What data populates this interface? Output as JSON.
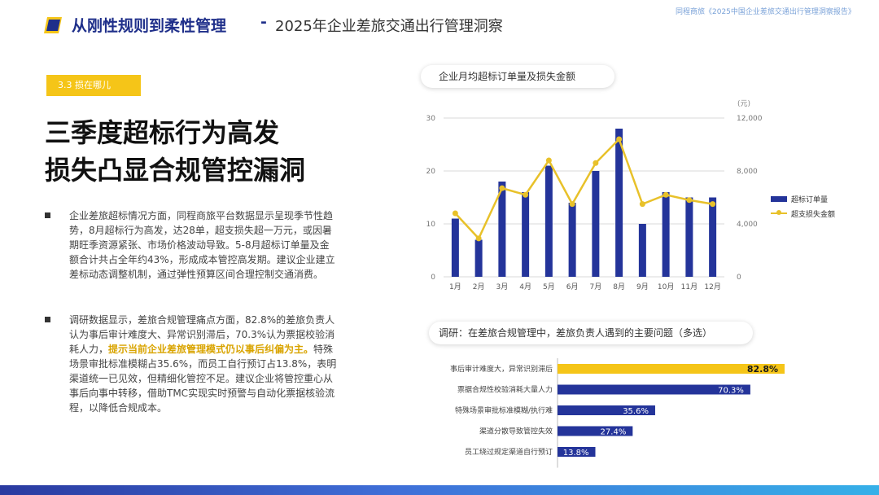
{
  "header": {
    "title": "从刚性规则到柔性管理",
    "separator": "-",
    "subtitle": "2025年企业差旅交通出行管理洞察",
    "report_name": "同程商旅《2025中国企业差旅交通出行管理洞察报告》",
    "colors": {
      "brand": "#1f2f8a",
      "accent": "#f5c518"
    }
  },
  "section_tag": "3.3 损在哪儿",
  "headline": [
    "三季度超标行为高发",
    "损失凸显合规管控漏洞"
  ],
  "paragraphs": [
    {
      "text": "企业差旅超标情况方面，同程商旅平台数据显示呈现季节性趋势，8月超标行为高发，达28单，超支损失超一万元，或因暑期旺季资源紧张、市场价格波动导致。5-8月超标订单量及金额合计共占全年约43%，形成成本管控高发期。建议企业建立差标动态调整机制，通过弹性预算区间合理控制交通消费。"
    },
    {
      "text_before": "调研数据显示，差旅合规管理痛点方面，82.8%的差旅负责人认为事后审计难度大、异常识别滞后，70.3%认为票据校验消耗人力，",
      "highlight": "提示当前企业差旅管理模式仍以事后纠偏为主。",
      "text_after": "特殊场景审批标准模糊占35.6%，而员工自行预订占13.8%，表明渠道统一已见效，但精细化管控不足。建议企业将管控重心从事后向事中转移，借助TMC实现实时预警与自动化票据核验流程，以降低合规成本。"
    }
  ],
  "chart1": {
    "title": "企业月均超标订单量及损失金额",
    "right_unit": "(元)",
    "left_ticks": [
      "0",
      "10",
      "20",
      "30"
    ],
    "right_ticks": [
      "0",
      "4,000",
      "8,000",
      "12,000"
    ],
    "legend": {
      "bar": "超标订单量",
      "line": "超支损失金额"
    },
    "colors": {
      "bar": "#24349a",
      "line": "#e8c12a"
    }
  },
  "chart2": {
    "title": "调研：在差旅合规管理中，差旅负责人遇到的主要问题（多选）",
    "colors": {
      "highlight": "#f5c518",
      "bar": "#24349a"
    }
  },
  "chart_data": [
    {
      "type": "bar",
      "title": "企业月均超标订单量及损失金额",
      "categories": [
        "1月",
        "2月",
        "3月",
        "4月",
        "5月",
        "6月",
        "7月",
        "8月",
        "9月",
        "10月",
        "11月",
        "12月"
      ],
      "series": [
        {
          "name": "超标订单量",
          "type": "bar",
          "axis": "left",
          "values": [
            11,
            7,
            18,
            16,
            21,
            14,
            20,
            28,
            10,
            16,
            15,
            15
          ]
        },
        {
          "name": "超支损失金额",
          "type": "line",
          "axis": "right",
          "values": [
            4800,
            2900,
            6700,
            6200,
            8800,
            5500,
            8600,
            10400,
            5500,
            6200,
            5800,
            5500
          ]
        }
      ],
      "ylim_left": [
        0,
        30
      ],
      "ylim_right": [
        0,
        12000
      ],
      "ylabel_right": "(元)",
      "legend_position": "right"
    },
    {
      "type": "bar",
      "orientation": "horizontal",
      "title": "调研：在差旅合规管理中，差旅负责人遇到的主要问题（多选）",
      "categories": [
        "事后审计难度大，异常识别滞后",
        "票据合规性校验消耗大量人力",
        "特殊场景审批标准模糊/执行难",
        "渠道分散导致管控失效",
        "员工绕过规定渠道自行预订"
      ],
      "values": [
        82.8,
        70.3,
        35.6,
        27.4,
        13.8
      ],
      "labels": [
        "82.8%",
        "70.3%",
        "35.6%",
        "27.4%",
        "13.8%"
      ],
      "xlim": [
        0,
        100
      ]
    }
  ]
}
